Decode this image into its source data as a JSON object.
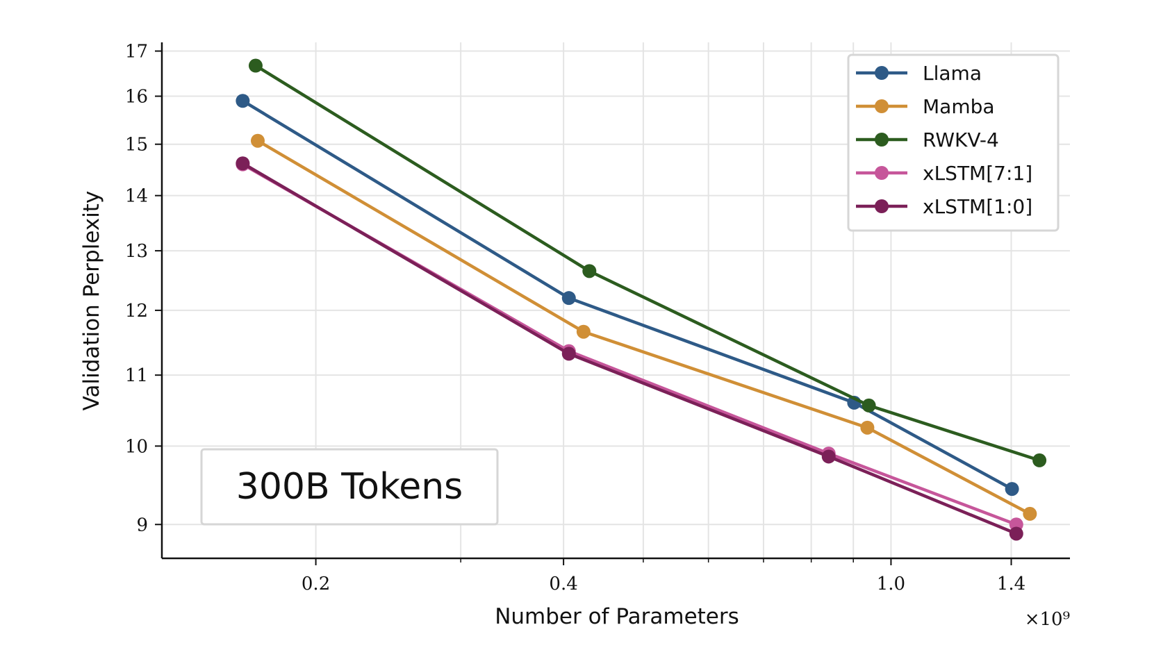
{
  "chart_data": {
    "type": "line",
    "title": "",
    "xlabel": "Number of Parameters",
    "ylabel": "Validation Perplexity",
    "x_multiplier_label": "×10⁹",
    "x_scale": "log",
    "y_scale": "log",
    "xlim": [
      0.13,
      1.65
    ],
    "ylim": [
      8.6,
      17.2
    ],
    "x_ticks": [
      {
        "value": 0.2,
        "label": "0.2"
      },
      {
        "value": 0.4,
        "label": "0.4"
      },
      {
        "value": 1.0,
        "label": "1.0"
      },
      {
        "value": 1.4,
        "label": "1.4"
      }
    ],
    "x_minor_ticks": [
      0.3,
      0.5,
      0.6,
      0.7,
      0.8,
      0.9
    ],
    "y_ticks": [
      {
        "value": 9,
        "label": "9"
      },
      {
        "value": 10,
        "label": "10"
      },
      {
        "value": 11,
        "label": "11"
      },
      {
        "value": 12,
        "label": "12"
      },
      {
        "value": 13,
        "label": "13"
      },
      {
        "value": 14,
        "label": "14"
      },
      {
        "value": 15,
        "label": "15"
      },
      {
        "value": 16,
        "label": "16"
      },
      {
        "value": 17,
        "label": "17"
      }
    ],
    "grid": true,
    "legend_position": "top-right",
    "annotation": "300B Tokens",
    "series": [
      {
        "name": "Llama",
        "color": "#2e5a87",
        "x": [
          0.163,
          0.406,
          0.902,
          1.403
        ],
        "y": [
          15.9,
          12.2,
          10.6,
          9.44
        ]
      },
      {
        "name": "Mamba",
        "color": "#d08f36",
        "x": [
          0.17,
          0.423,
          0.936,
          1.475
        ],
        "y": [
          15.07,
          11.66,
          10.25,
          9.13
        ]
      },
      {
        "name": "RWKV-4",
        "color": "#2c5c1f",
        "x": [
          0.169,
          0.43,
          0.94,
          1.515
        ],
        "y": [
          16.67,
          12.65,
          10.56,
          9.81
        ]
      },
      {
        "name": "xLSTM[7:1]",
        "color": "#c6569a",
        "x": [
          0.163,
          0.406,
          0.84,
          1.42
        ],
        "y": [
          14.6,
          11.36,
          9.9,
          9.0
        ]
      },
      {
        "name": "xLSTM[1:0]",
        "color": "#7b2058",
        "x": [
          0.163,
          0.406,
          0.84,
          1.42
        ],
        "y": [
          14.62,
          11.32,
          9.86,
          8.89
        ]
      }
    ]
  }
}
